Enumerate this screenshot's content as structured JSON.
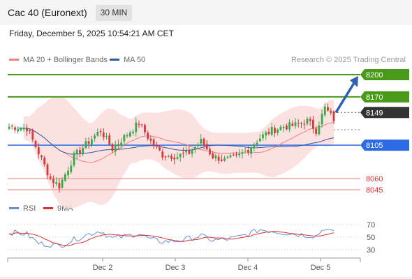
{
  "header": {
    "title": "Cac 40 (Euronext)",
    "interval": "30 MIN",
    "timestamp": "Friday, December 5, 2025 10:54:21 AM CET"
  },
  "legend": {
    "ma20": "MA 20 + Bollinger Bands",
    "ma50": "MA 50",
    "credit": "Research © 2025 Trading Central",
    "rsi": "RSI",
    "ma9": "9MA"
  },
  "colors": {
    "resistance": "#4a9a1a",
    "support": "#f4a6a6",
    "support_text": "#e03030",
    "pivot": "#2d6be4",
    "last": "#333333",
    "ma20": "#f08080",
    "ma50": "#2e5a9e",
    "bollinger": "#fbdcdc",
    "candle_up": "#3aa84a",
    "candle_down": "#d43a3a",
    "rsi": "#6a8fd8",
    "rsi_ma": "#d93030",
    "arrow": "#2e62b0"
  },
  "levels": [
    {
      "label": "8200",
      "value": 8200,
      "kind": "resistance"
    },
    {
      "label": "8170",
      "value": 8170,
      "kind": "resistance"
    },
    {
      "label": "8149",
      "value": 8149,
      "kind": "last"
    },
    {
      "label": "8105",
      "value": 8105,
      "kind": "pivot"
    },
    {
      "label": "8060",
      "value": 8060,
      "kind": "support"
    },
    {
      "label": "8045",
      "value": 8045,
      "kind": "support"
    }
  ],
  "chart_data": {
    "type": "candlestick",
    "instrument": "Cac 40 (Euronext)",
    "timeframe": "30 MIN",
    "x_ticks": [
      "Dec 2",
      "Dec 3",
      "Dec 4",
      "Dec 5"
    ],
    "ohlc_anchors": [
      {
        "i": 0,
        "c": 8130
      },
      {
        "i": 6,
        "c": 8128
      },
      {
        "i": 10,
        "c": 8095
      },
      {
        "i": 14,
        "c": 8060
      },
      {
        "i": 17,
        "c": 8050
      },
      {
        "i": 22,
        "c": 8090
      },
      {
        "i": 27,
        "c": 8110
      },
      {
        "i": 31,
        "c": 8125
      },
      {
        "i": 35,
        "c": 8100
      },
      {
        "i": 40,
        "c": 8120
      },
      {
        "i": 44,
        "c": 8135
      },
      {
        "i": 48,
        "c": 8110
      },
      {
        "i": 52,
        "c": 8092
      },
      {
        "i": 57,
        "c": 8090
      },
      {
        "i": 61,
        "c": 8095
      },
      {
        "i": 65,
        "c": 8110
      },
      {
        "i": 69,
        "c": 8090
      },
      {
        "i": 73,
        "c": 8085
      },
      {
        "i": 77,
        "c": 8088
      },
      {
        "i": 81,
        "c": 8100
      },
      {
        "i": 85,
        "c": 8115
      },
      {
        "i": 89,
        "c": 8125
      },
      {
        "i": 93,
        "c": 8130
      },
      {
        "i": 97,
        "c": 8132
      },
      {
        "i": 101,
        "c": 8138
      },
      {
        "i": 104,
        "c": 8125
      },
      {
        "i": 107,
        "c": 8155
      },
      {
        "i": 110,
        "c": 8140
      }
    ],
    "rsi": {
      "levels": [
        70,
        50,
        30
      ],
      "anchors": [
        {
          "i": 0,
          "v": 58
        },
        {
          "i": 6,
          "v": 55
        },
        {
          "i": 10,
          "v": 40
        },
        {
          "i": 14,
          "v": 38
        },
        {
          "i": 17,
          "v": 36
        },
        {
          "i": 22,
          "v": 46
        },
        {
          "i": 27,
          "v": 55
        },
        {
          "i": 31,
          "v": 60
        },
        {
          "i": 35,
          "v": 48
        },
        {
          "i": 40,
          "v": 52
        },
        {
          "i": 44,
          "v": 56
        },
        {
          "i": 48,
          "v": 46
        },
        {
          "i": 52,
          "v": 43
        },
        {
          "i": 57,
          "v": 44
        },
        {
          "i": 61,
          "v": 48
        },
        {
          "i": 65,
          "v": 52
        },
        {
          "i": 69,
          "v": 45
        },
        {
          "i": 73,
          "v": 46
        },
        {
          "i": 77,
          "v": 49
        },
        {
          "i": 81,
          "v": 55
        },
        {
          "i": 85,
          "v": 62
        },
        {
          "i": 89,
          "v": 60
        },
        {
          "i": 93,
          "v": 57
        },
        {
          "i": 97,
          "v": 55
        },
        {
          "i": 101,
          "v": 53
        },
        {
          "i": 104,
          "v": 52
        },
        {
          "i": 107,
          "v": 65
        },
        {
          "i": 110,
          "v": 56
        }
      ]
    },
    "forecast_arrow": {
      "from": 8149,
      "to": 8200
    }
  }
}
